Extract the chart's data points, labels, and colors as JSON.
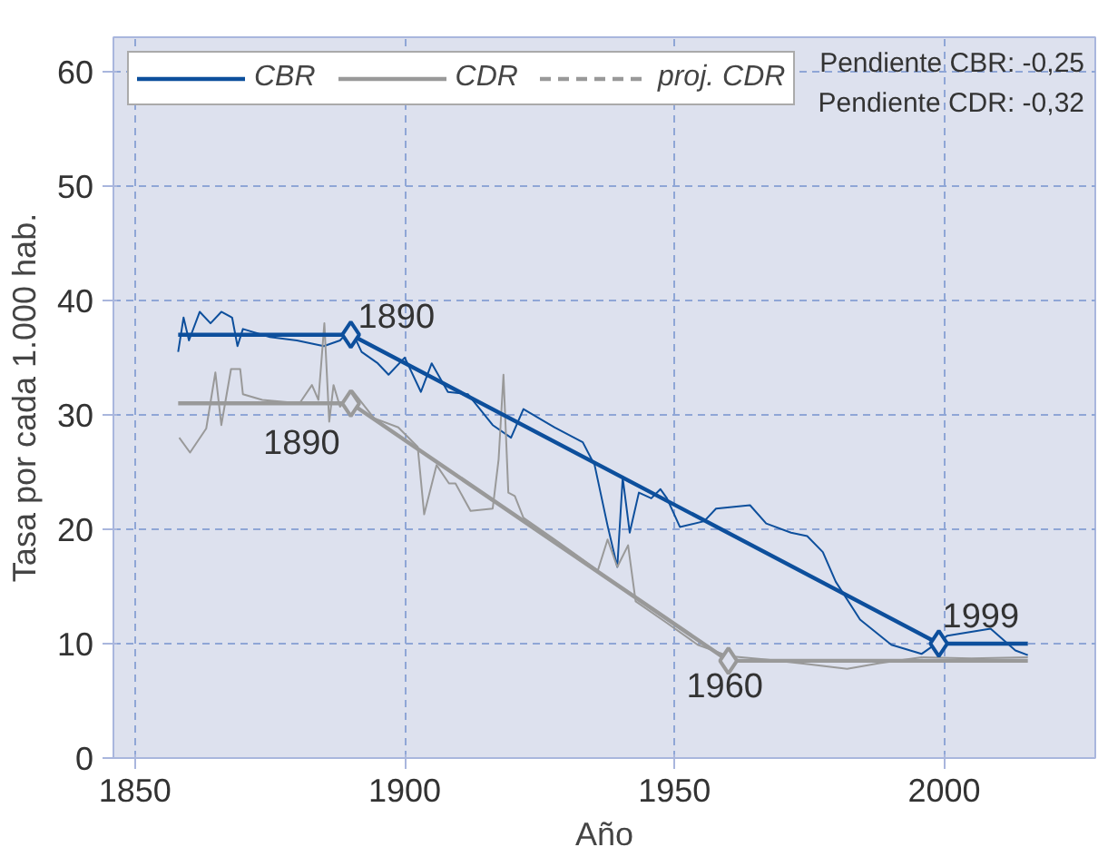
{
  "chart_data": {
    "type": "line",
    "xlabel": "Año",
    "ylabel": "Tasa por cada 1.000 hab.",
    "xlim": [
      1846,
      2028
    ],
    "ylim": [
      0,
      63
    ],
    "xticks": [
      1850,
      1900,
      1950,
      2000
    ],
    "yticks": [
      0,
      10,
      20,
      30,
      40,
      50,
      60
    ],
    "grid": true,
    "legend": "top left",
    "series": [
      {
        "color": "#0d4f9c",
        "x": [
          1858,
          1859,
          1860,
          1862,
          1864,
          1866,
          1868,
          1869,
          1870,
          1875,
          1880,
          1885,
          1888,
          1890,
          1892,
          1895,
          1897,
          1900,
          1903,
          1905,
          1908,
          1911.7,
          1916.3,
          1919.7,
          1922,
          1927.8,
          1933,
          1935.2,
          1937.6,
          1939.4,
          1940.4,
          1941.7,
          1943.4,
          1945.7,
          1947.4,
          1948.6,
          1951,
          1955.5,
          1957.7,
          1964,
          1967,
          1971.6,
          1974.6,
          1977.5,
          1979.9,
          1984.4,
          1990.2,
          1995.8,
          2000.6,
          2008.6,
          2013.2,
          2015.5
        ],
        "values": [
          35.5,
          38.5,
          36.5,
          39,
          38,
          39,
          38.5,
          36,
          37.5,
          36.8,
          36.5,
          36,
          36.5,
          37.5,
          35.5,
          34.5,
          33.5,
          35,
          32,
          34.5,
          32,
          31.8,
          29.1,
          28,
          30.5,
          28.9,
          27.6,
          25.6,
          20.3,
          16.7,
          24.5,
          19.7,
          23.2,
          22.7,
          23.5,
          22.7,
          20.2,
          20.7,
          21.8,
          22.1,
          20.5,
          19.7,
          19.4,
          18,
          15.4,
          12.1,
          9.9,
          9.1,
          10.7,
          11.3,
          9.4,
          9.0
        ]
      },
      {
        "color": "#999999",
        "x": [
          1858.2,
          1860.2,
          1863.2,
          1864.9,
          1866,
          1867.8,
          1869.5,
          1870,
          1873.6,
          1880.5,
          1882.8,
          1884,
          1885.1,
          1886,
          1886.8,
          1888,
          1890.3,
          1894.3,
          1898.8,
          1902.4,
          1903.6,
          1905.9,
          1908.2,
          1909.4,
          1912.2,
          1916.3,
          1917.4,
          1918.3,
          1919.2,
          1920.4,
          1922,
          1927.8,
          1935.8,
          1937.6,
          1939.4,
          1941.4,
          1942.8,
          1948.6,
          1954.3,
          1960.1,
          1967,
          1975,
          1982,
          1988,
          1995.8,
          2005,
          2015.5
        ],
        "values": [
          28,
          26.7,
          28.8,
          33.7,
          29.1,
          34,
          34,
          31.8,
          31.3,
          31,
          32.6,
          31.3,
          38,
          29.4,
          32.6,
          30.7,
          32.1,
          29.7,
          28.9,
          27.2,
          21.3,
          25.6,
          24,
          24,
          21.6,
          21.8,
          26.1,
          33.5,
          23.2,
          22.9,
          21,
          19.1,
          16.4,
          19.1,
          16.7,
          18.6,
          13.7,
          11.8,
          9.9,
          8.9,
          8.6,
          8.2,
          7.8,
          8.3,
          8.8,
          8.7,
          8.8
        ]
      },
      {
        "name": "CBR",
        "color": "#0d4f9c",
        "x": [
          1858,
          1890,
          1999,
          2015.5
        ],
        "values": [
          37,
          37,
          10,
          10
        ]
      },
      {
        "name": "CDR",
        "color": "#999999",
        "x": [
          1858,
          1890,
          1960,
          2015.5
        ],
        "values": [
          31,
          31,
          8.5,
          8.5
        ]
      },
      {
        "name": "proj. CDR",
        "color": "#999999",
        "line_style": "dashed"
      },
      {
        "type": "scatter",
        "marker": "diamond",
        "color": "#0d4f9c",
        "x": [
          1890,
          1999
        ],
        "values": [
          37,
          10
        ]
      },
      {
        "type": "scatter",
        "marker": "diamond",
        "color": "#999999",
        "x": [
          1890,
          1960
        ],
        "values": [
          31,
          8.5
        ]
      }
    ],
    "annotations": [
      {
        "text": "1890",
        "x": 1890,
        "y": 37
      },
      {
        "text": "1890",
        "x": 1890,
        "y": 31
      },
      {
        "text": "1960",
        "x": 1960,
        "y": 8.5
      },
      {
        "text": "1999",
        "x": 1999,
        "y": 10
      },
      "Pendiente CBR: -0,25",
      "Pendiente CDR: -0,32"
    ]
  }
}
